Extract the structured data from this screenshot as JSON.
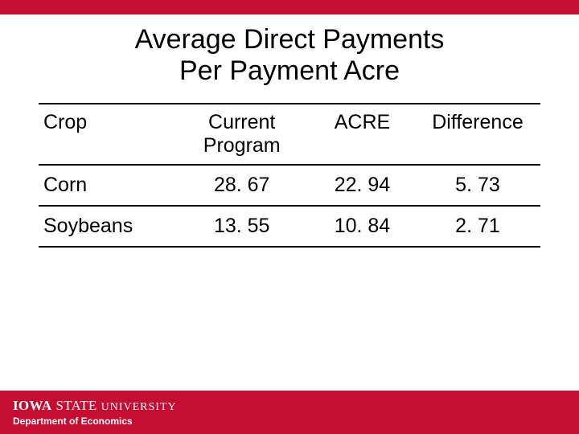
{
  "colors": {
    "accent": "#c60c30",
    "background": "#ffffff",
    "text": "#000000",
    "footer_text": "#ffffff",
    "border": "#000000"
  },
  "title_line1": "Average Direct Payments",
  "title_line2": "Per Payment Acre",
  "table": {
    "columns": [
      "Crop",
      "Current Program",
      "ACRE",
      "Difference"
    ],
    "header_col2_line1": "Current",
    "header_col2_line2": "Program",
    "rows": [
      {
        "crop": "Corn",
        "current": "28. 67",
        "acre": "22. 94",
        "diff": "5. 73"
      },
      {
        "crop": "Soybeans",
        "current": "13. 55",
        "acre": "10. 84",
        "diff": "2. 71"
      }
    ],
    "font_size": 25,
    "border_width": 2,
    "col_widths_pct": [
      27,
      27,
      21,
      25
    ]
  },
  "footer": {
    "iowa": "IOWA",
    "state": "STATE",
    "university": "UNIVERSITY",
    "dept": "Department of Economics"
  }
}
